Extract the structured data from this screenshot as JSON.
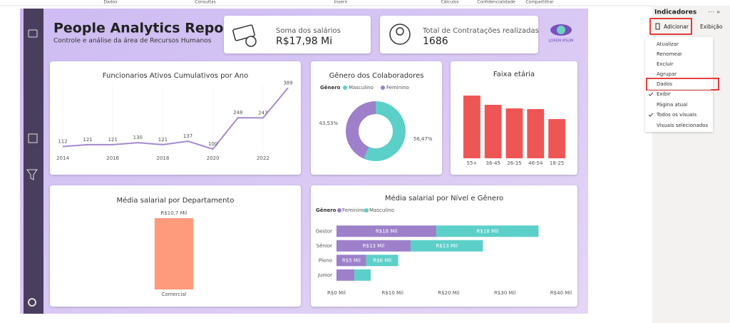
{
  "ribbon": {
    "groups": [
      "Dados",
      "Consultas",
      "Inserir",
      "Cálculos",
      "Confidencialidade",
      "Compartilhar"
    ]
  },
  "header": {
    "title": "People Analytics Report",
    "subtitle": "Controle e análise da área de Recursos Humanos",
    "logo": "LOREM IPSUM"
  },
  "kpis": [
    {
      "label": "Soma dos salários",
      "value": "R$17,98 Mi"
    },
    {
      "label": "Total de Contratações realizadas",
      "value": "1686"
    }
  ],
  "bookmarks": {
    "title": "Indicadores",
    "add": "Adicionar",
    "view": "Exibição",
    "menu": [
      {
        "label": "Atualizar"
      },
      {
        "label": "Renomear"
      },
      {
        "label": "Excluir"
      },
      {
        "label": "Agrupar"
      },
      {
        "label": "Dados",
        "highlighted": true
      },
      {
        "label": "Exibir",
        "checked": true
      },
      {
        "label": "Página atual"
      },
      {
        "label": "Todos os visuais",
        "checked": true
      },
      {
        "label": "Visuais selecionados"
      }
    ]
  },
  "chart_data": [
    {
      "type": "line",
      "title": "Funcionarios Ativos Cumulativos por Ano",
      "x": [
        2014,
        2015,
        2016,
        2017,
        2018,
        2019,
        2020,
        2021,
        2022,
        2023
      ],
      "values": [
        112,
        121,
        121,
        130,
        121,
        137,
        100,
        248,
        247,
        389
      ],
      "color": "#a58ad0",
      "xlim": [
        2014,
        2023
      ],
      "xticks": [
        2014,
        2016,
        2018,
        2020,
        2022
      ],
      "ylim": [
        80,
        400
      ],
      "grid": true
    },
    {
      "type": "donut",
      "title": "Gênero dos Colaboradores",
      "legend_title": "Gênero",
      "categories": [
        "Masculino",
        "Feminino"
      ],
      "values": [
        56.47,
        43.53
      ],
      "value_labels": [
        "56,47%",
        "43,53%"
      ],
      "colors": [
        "#5dcfc9",
        "#9d80c9"
      ]
    },
    {
      "type": "bar",
      "title": "Faixa etária",
      "categories": [
        "55+",
        "36-45",
        "26-35",
        "46-54",
        "18-25"
      ],
      "values": [
        88,
        75,
        70,
        69,
        55
      ],
      "color": "#ee5656",
      "ylim": [
        0,
        100
      ]
    },
    {
      "type": "bar",
      "title": "Média salarial por Departamento",
      "categories": [
        "Comercial"
      ],
      "values": [
        10700
      ],
      "value_labels": [
        "R$10,7 Mil"
      ],
      "color": "#ff9b7d",
      "ylim": [
        0,
        10700
      ]
    },
    {
      "type": "hbar_stacked",
      "title": "Média salarial por Nível e Gênero",
      "legend_title": "Gênero",
      "categories": [
        "Gestor",
        "Sênior",
        "Pleno",
        "Junior"
      ],
      "series": [
        {
          "name": "Feminino",
          "color": "#9d80c9",
          "values": [
            17800,
            13200,
            5300,
            3200
          ],
          "value_labels": [
            "R$18 Mil",
            "R$13 Mil",
            "R$5 Mil",
            null
          ]
        },
        {
          "name": "Masculino",
          "color": "#5dcfc9",
          "values": [
            18200,
            12900,
            5700,
            2900
          ],
          "value_labels": [
            "R$18 Mil",
            "R$13 Mil",
            "R$6 Mil",
            null
          ]
        }
      ],
      "xlim": [
        0,
        40000
      ],
      "xticks": [
        {
          "value": 0,
          "label": "R$0 Mil"
        },
        {
          "value": 10000,
          "label": "R$10 Mil"
        },
        {
          "value": 20000,
          "label": "R$20 Mil"
        },
        {
          "value": 30000,
          "label": "R$30 Mil"
        },
        {
          "value": 40000,
          "label": "R$40 Mil"
        }
      ]
    }
  ]
}
